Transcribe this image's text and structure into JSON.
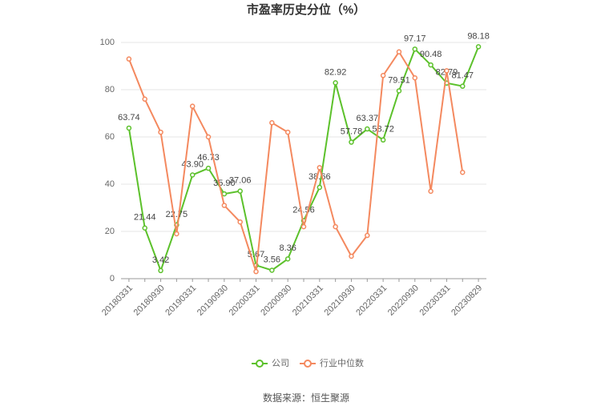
{
  "chart_data": {
    "type": "line",
    "title": "市盈率历史分位（%）",
    "categories": [
      "20180331",
      null,
      "20180930",
      null,
      "20190331",
      null,
      "20190930",
      null,
      "20200331",
      null,
      "20200930",
      null,
      "20210331",
      null,
      "20210930",
      null,
      "20220331",
      null,
      "20220930",
      null,
      "20230331",
      null,
      "20230829"
    ],
    "series": [
      {
        "name": "公司",
        "color": "#5cc12b",
        "values": [
          63.74,
          21.44,
          3.42,
          22.75,
          43.9,
          46.73,
          35.9,
          37.06,
          5.67,
          3.56,
          8.36,
          24.56,
          38.66,
          82.92,
          57.78,
          63.37,
          58.72,
          79.51,
          97.17,
          90.48,
          82.79,
          81.47,
          98.18
        ],
        "value_labels": [
          "63.74",
          "21.44",
          "3.42",
          "22.75",
          "43.90",
          "46.73",
          "35.90",
          "37.06",
          "5.67",
          "3.56",
          "8.36",
          "24.56",
          "38.66",
          "82.92",
          "57.78",
          "63.37",
          "58.72",
          "79.51",
          "97.17",
          "90.48",
          "82.79",
          "81.47",
          "98.18"
        ]
      },
      {
        "name": "行业中位数",
        "color": "#f4895f",
        "values": [
          93,
          76,
          62,
          19,
          73,
          60,
          31,
          24,
          3,
          66,
          62,
          22,
          47,
          22,
          9.5,
          18.3,
          86,
          96,
          85,
          37,
          88,
          45,
          null
        ]
      }
    ],
    "ylim": [
      0,
      100
    ],
    "yticks": [
      0,
      20,
      40,
      60,
      80,
      100
    ],
    "grid": true,
    "legend": "bottom",
    "source": "数据来源：恒生聚源"
  }
}
